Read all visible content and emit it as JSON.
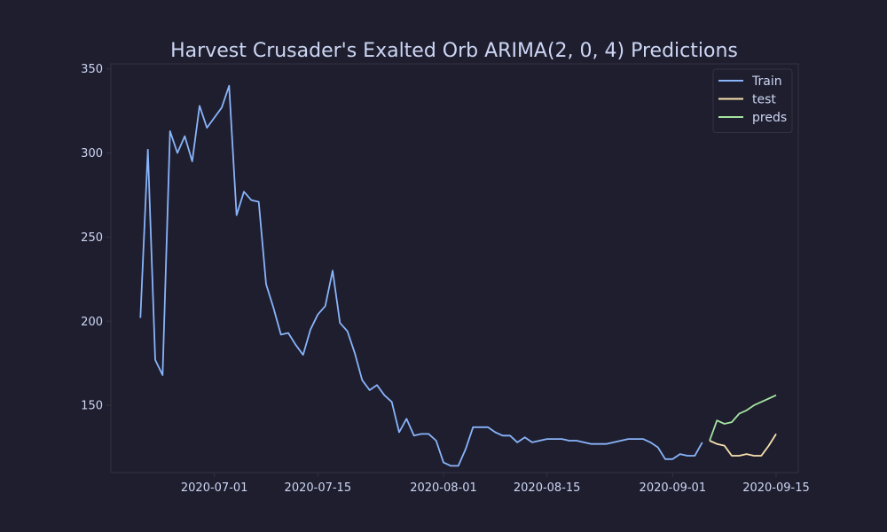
{
  "chart_data": {
    "type": "line",
    "title": "Harvest Crusader's Exalted Orb ARIMA(2, 0, 4) Predictions",
    "xlabel": "",
    "ylabel": "",
    "x_ticks": [
      "2020-07-01",
      "2020-07-15",
      "2020-08-01",
      "2020-08-15",
      "2020-09-01",
      "2020-09-15"
    ],
    "y_ticks": [
      150,
      200,
      250,
      300,
      350
    ],
    "xlim": [
      "2020-06-17",
      "2020-09-18"
    ],
    "ylim": [
      110,
      353
    ],
    "legend_position": "top-right",
    "grid": false,
    "series": [
      {
        "name": "Train",
        "color": "#89b4fa",
        "points": [
          [
            "2020-06-21",
            202
          ],
          [
            "2020-06-22",
            302
          ],
          [
            "2020-06-23",
            177
          ],
          [
            "2020-06-24",
            168
          ],
          [
            "2020-06-25",
            313
          ],
          [
            "2020-06-26",
            300
          ],
          [
            "2020-06-27",
            310
          ],
          [
            "2020-06-28",
            295
          ],
          [
            "2020-06-29",
            328
          ],
          [
            "2020-06-30",
            315
          ],
          [
            "2020-07-02",
            327
          ],
          [
            "2020-07-03",
            340
          ],
          [
            "2020-07-04",
            263
          ],
          [
            "2020-07-05",
            277
          ],
          [
            "2020-07-06",
            272
          ],
          [
            "2020-07-07",
            271
          ],
          [
            "2020-07-08",
            222
          ],
          [
            "2020-07-09",
            208
          ],
          [
            "2020-07-10",
            192
          ],
          [
            "2020-07-11",
            193
          ],
          [
            "2020-07-12",
            186
          ],
          [
            "2020-07-13",
            180
          ],
          [
            "2020-07-14",
            195
          ],
          [
            "2020-07-15",
            204
          ],
          [
            "2020-07-16",
            209
          ],
          [
            "2020-07-17",
            230
          ],
          [
            "2020-07-18",
            199
          ],
          [
            "2020-07-19",
            194
          ],
          [
            "2020-07-20",
            181
          ],
          [
            "2020-07-21",
            165
          ],
          [
            "2020-07-22",
            159
          ],
          [
            "2020-07-23",
            162
          ],
          [
            "2020-07-24",
            156
          ],
          [
            "2020-07-25",
            152
          ],
          [
            "2020-07-26",
            134
          ],
          [
            "2020-07-27",
            142
          ],
          [
            "2020-07-28",
            132
          ],
          [
            "2020-07-29",
            133
          ],
          [
            "2020-07-30",
            133
          ],
          [
            "2020-07-31",
            129
          ],
          [
            "2020-08-01",
            116
          ],
          [
            "2020-08-02",
            114
          ],
          [
            "2020-08-03",
            114
          ],
          [
            "2020-08-04",
            124
          ],
          [
            "2020-08-05",
            137
          ],
          [
            "2020-08-06",
            137
          ],
          [
            "2020-08-07",
            137
          ],
          [
            "2020-08-08",
            134
          ],
          [
            "2020-08-09",
            132
          ],
          [
            "2020-08-10",
            132
          ],
          [
            "2020-08-11",
            128
          ],
          [
            "2020-08-12",
            131
          ],
          [
            "2020-08-13",
            128
          ],
          [
            "2020-08-14",
            129
          ],
          [
            "2020-08-15",
            130
          ],
          [
            "2020-08-16",
            130
          ],
          [
            "2020-08-17",
            130
          ],
          [
            "2020-08-18",
            129
          ],
          [
            "2020-08-19",
            129
          ],
          [
            "2020-08-20",
            128
          ],
          [
            "2020-08-21",
            127
          ],
          [
            "2020-08-22",
            127
          ],
          [
            "2020-08-23",
            127
          ],
          [
            "2020-08-24",
            128
          ],
          [
            "2020-08-25",
            129
          ],
          [
            "2020-08-26",
            130
          ],
          [
            "2020-08-27",
            130
          ],
          [
            "2020-08-28",
            130
          ],
          [
            "2020-08-29",
            128
          ],
          [
            "2020-08-30",
            125
          ],
          [
            "2020-08-31",
            118
          ],
          [
            "2020-09-01",
            118
          ],
          [
            "2020-09-02",
            121
          ],
          [
            "2020-09-03",
            120
          ],
          [
            "2020-09-04",
            120
          ],
          [
            "2020-09-05",
            128
          ]
        ]
      },
      {
        "name": "test",
        "color": "#f9e2af",
        "points": [
          [
            "2020-09-06",
            129
          ],
          [
            "2020-09-07",
            127
          ],
          [
            "2020-09-08",
            126
          ],
          [
            "2020-09-09",
            120
          ],
          [
            "2020-09-10",
            120
          ],
          [
            "2020-09-11",
            121
          ],
          [
            "2020-09-12",
            120
          ],
          [
            "2020-09-13",
            120
          ],
          [
            "2020-09-14",
            126
          ],
          [
            "2020-09-15",
            133
          ]
        ]
      },
      {
        "name": "preds",
        "color": "#a6e3a1",
        "points": [
          [
            "2020-09-06",
            129
          ],
          [
            "2020-09-07",
            141
          ],
          [
            "2020-09-08",
            139
          ],
          [
            "2020-09-09",
            140
          ],
          [
            "2020-09-10",
            145
          ],
          [
            "2020-09-11",
            147
          ],
          [
            "2020-09-12",
            150
          ],
          [
            "2020-09-13",
            152
          ],
          [
            "2020-09-14",
            154
          ],
          [
            "2020-09-15",
            156
          ]
        ]
      }
    ]
  },
  "colors": {
    "background": "#1e1e2e",
    "axis": "#313244",
    "text": "#cdd6f4",
    "legend_bg": "#1e1e2e",
    "legend_border": "#313244"
  }
}
